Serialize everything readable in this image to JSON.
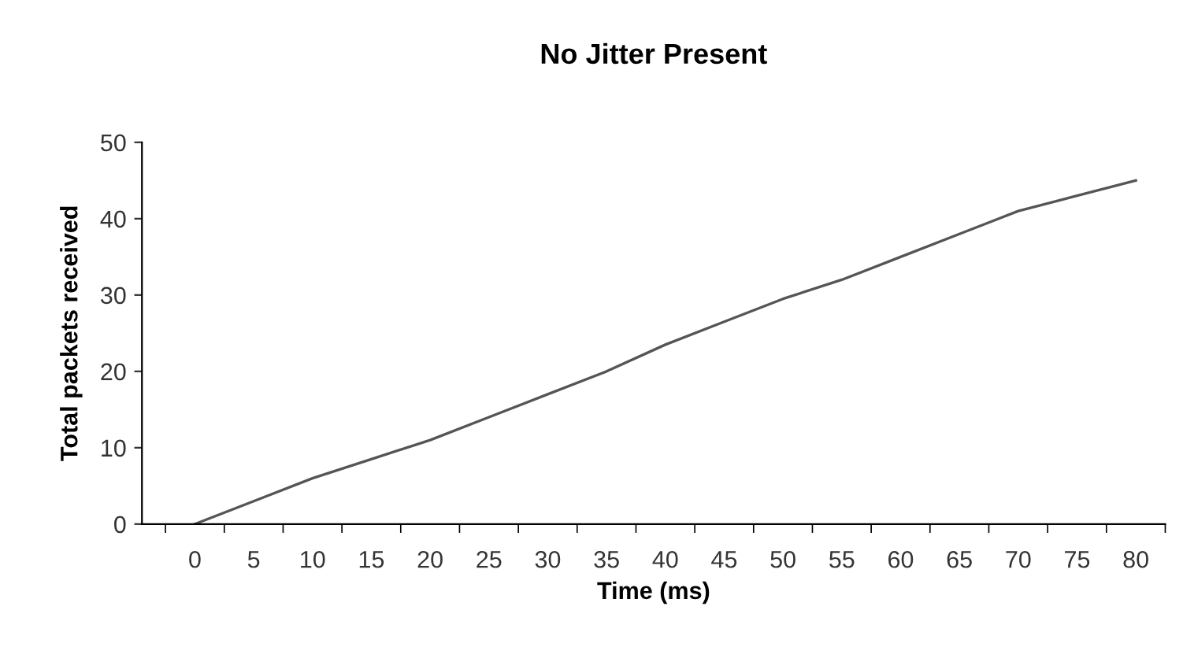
{
  "chart_data": {
    "type": "line",
    "title": "No Jitter Present",
    "xlabel": "Time (ms)",
    "ylabel": "Total packets received",
    "categories": [
      "0",
      "5",
      "10",
      "15",
      "20",
      "25",
      "30",
      "35",
      "40",
      "45",
      "50",
      "55",
      "60",
      "65",
      "70",
      "75",
      "80"
    ],
    "series": [
      {
        "color": "#555555",
        "values": [
          0,
          3,
          6,
          8.5,
          11,
          14,
          17,
          20,
          23.5,
          26.5,
          29.5,
          32,
          35,
          38,
          41,
          43,
          45
        ]
      }
    ],
    "ylim": [
      0,
      50
    ],
    "yticks": [
      0,
      10,
      20,
      30,
      40,
      50
    ],
    "grid": false,
    "marker": "none",
    "line_style": "solid"
  }
}
